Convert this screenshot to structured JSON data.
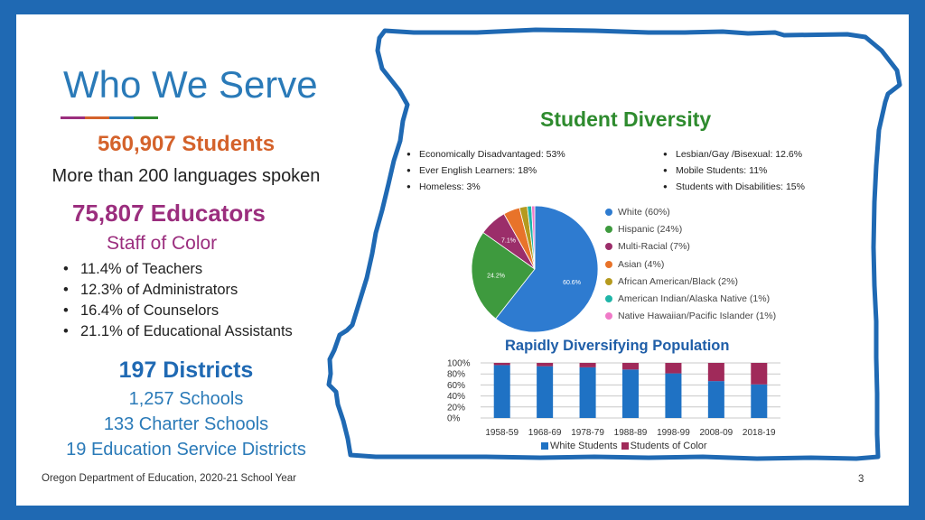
{
  "slide": {
    "title": "Who We Serve",
    "title_rule_colors": [
      "#9b2e7e",
      "#d4622b",
      "#2a7ab8",
      "#2e8b2e"
    ],
    "students": "560,907 Students",
    "languages": "More than 200 languages spoken",
    "educators": "75,807 Educators",
    "staff_heading": "Staff of Color",
    "staff_bullets": [
      "11.4% of Teachers",
      "12.3% of Administrators",
      "16.4% of Counselors",
      "21.1% of Educational Assistants"
    ],
    "districts": "197 Districts",
    "schools": "1,257 Schools",
    "charter": "133 Charter Schools",
    "esd": "19 Education Service Districts",
    "footer": "Oregon Department of Education, 2020-21 School Year",
    "page_number": "3"
  },
  "diversity": {
    "title": "Student Diversity",
    "col_a": [
      "Economically Disadvantaged: 53%",
      "Ever English Learners: 18%",
      "Homeless: 3%"
    ],
    "col_b": [
      "Lesbian/Gay /Bisexual: 12.6%",
      "Mobile Students: 11%",
      "Students with Disabilities: 15%"
    ]
  },
  "chart_data": [
    {
      "type": "pie",
      "slices": [
        {
          "label": "White (60%)",
          "value": 60.6,
          "color": "#2e7bd0"
        },
        {
          "label": "Hispanic (24%)",
          "value": 24.2,
          "color": "#3e9a3e"
        },
        {
          "label": "Multi-Racial (7%)",
          "value": 7.1,
          "color": "#9b2e6a"
        },
        {
          "label": "Asian (4%)",
          "value": 4.2,
          "color": "#e8732a"
        },
        {
          "label": "African American/Black (2%)",
          "value": 2.0,
          "color": "#b59a1e"
        },
        {
          "label": "American Indian/Alaska Native (1%)",
          "value": 1.1,
          "color": "#1fb5a8"
        },
        {
          "label": "Native Hawaiian/Pacific Islander (1%)",
          "value": 0.8,
          "color": "#f07ac8"
        }
      ],
      "data_labels": {
        "White (60%)": "60.6%",
        "Hispanic (24%)": "24.2%",
        "Multi-Racial (7%)": "7.1%"
      }
    },
    {
      "type": "bar",
      "stacked": true,
      "title": "Rapidly Diversifying Population",
      "categories": [
        "1958-59",
        "1968-69",
        "1978-79",
        "1988-89",
        "1998-99",
        "2008-09",
        "2018-19"
      ],
      "series": [
        {
          "name": "White Students",
          "color": "#1f72c4",
          "values": [
            96,
            94,
            92,
            88,
            81,
            67,
            61
          ]
        },
        {
          "name": "Students of Color",
          "color": "#a02a5a",
          "values": [
            4,
            6,
            8,
            12,
            19,
            33,
            39
          ]
        }
      ],
      "yticks": [
        "100%",
        "80%",
        "60%",
        "40%",
        "20%",
        "0%"
      ],
      "ylim": [
        0,
        100
      ]
    }
  ]
}
